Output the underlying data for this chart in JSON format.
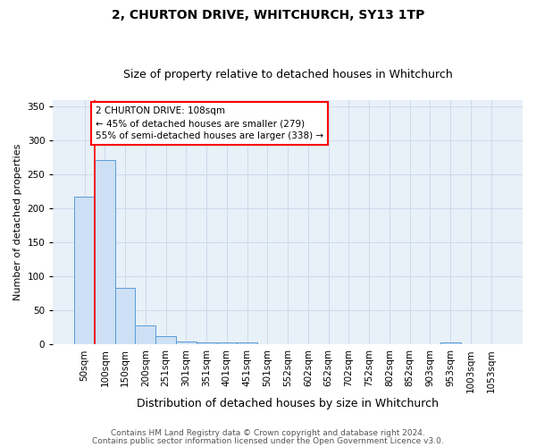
{
  "title1": "2, CHURTON DRIVE, WHITCHURCH, SY13 1TP",
  "title2": "Size of property relative to detached houses in Whitchurch",
  "xlabel": "Distribution of detached houses by size in Whitchurch",
  "ylabel": "Number of detached properties",
  "bar_labels": [
    "50sqm",
    "100sqm",
    "150sqm",
    "200sqm",
    "251sqm",
    "301sqm",
    "351sqm",
    "401sqm",
    "451sqm",
    "501sqm",
    "552sqm",
    "602sqm",
    "652sqm",
    "702sqm",
    "752sqm",
    "802sqm",
    "852sqm",
    "903sqm",
    "953sqm",
    "1003sqm",
    "1053sqm"
  ],
  "bar_values": [
    218,
    271,
    84,
    28,
    13,
    4,
    3,
    3,
    3,
    0,
    0,
    0,
    0,
    0,
    0,
    0,
    0,
    0,
    3,
    0,
    0
  ],
  "bar_color": "#cde0f5",
  "bar_edge_color": "#5b9bd5",
  "annotation_box_text": "2 CHURTON DRIVE: 108sqm\n← 45% of detached houses are smaller (279)\n55% of semi-detached houses are larger (338) →",
  "annotation_box_color": "white",
  "annotation_box_edge_color": "red",
  "vline_color": "red",
  "footer1": "Contains HM Land Registry data © Crown copyright and database right 2024.",
  "footer2": "Contains public sector information licensed under the Open Government Licence v3.0.",
  "ylim": [
    0,
    360
  ],
  "yticks": [
    0,
    50,
    100,
    150,
    200,
    250,
    300,
    350
  ],
  "title1_fontsize": 10,
  "title2_fontsize": 9,
  "xlabel_fontsize": 9,
  "ylabel_fontsize": 8,
  "tick_fontsize": 7.5,
  "footer_fontsize": 6.5,
  "annotation_fontsize": 7.5,
  "grid_color": "#c8d8e8",
  "background_color": "#e8f0f8"
}
